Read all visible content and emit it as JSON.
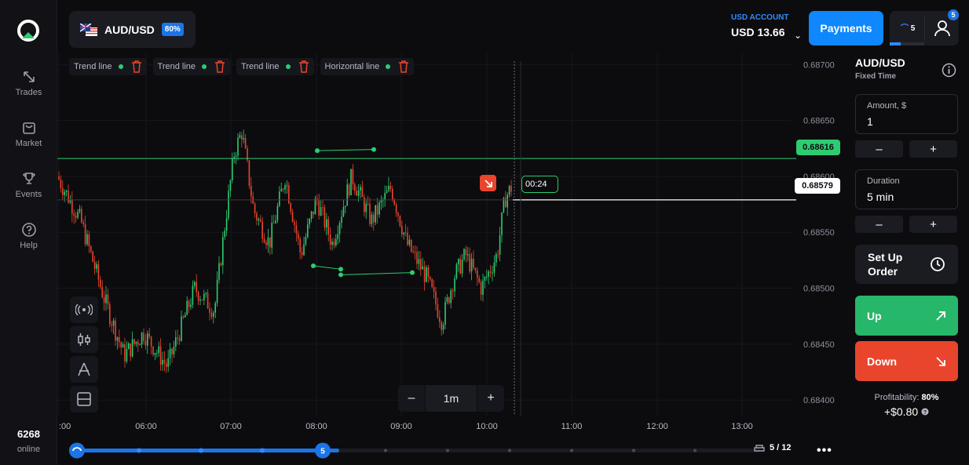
{
  "nav": {
    "items": [
      {
        "label": "Trades",
        "icon": "trades-icon"
      },
      {
        "label": "Market",
        "icon": "market-icon"
      },
      {
        "label": "Events",
        "icon": "trophy-icon"
      },
      {
        "label": "Help",
        "icon": "help-icon"
      }
    ],
    "online_count": "6268",
    "online_label": "online"
  },
  "header": {
    "asset": "AUD/USD",
    "asset_payout": "80%",
    "account_label": "USD ACCOUNT",
    "balance": "USD 13.66",
    "payments_label": "Payments",
    "level": "5",
    "notifications": "5"
  },
  "drawing_tools": [
    {
      "label": "Trend line"
    },
    {
      "label": "Trend line"
    },
    {
      "label": "Trend line"
    },
    {
      "label": "Horizontal line"
    }
  ],
  "chart_data": {
    "type": "candlestick",
    "price_axis": [
      "0.68700",
      "0.68650",
      "0.68600",
      "0.68550",
      "0.68500",
      "0.68450",
      "0.68400"
    ],
    "time_axis": [
      ":00",
      "06:00",
      "07:00",
      "08:00",
      "09:00",
      "10:00",
      "11:00",
      "12:00",
      "13:00"
    ],
    "horizontal_line_price": "0.68616",
    "current_price": "0.68579",
    "timer": "00:24",
    "timeframe": "1m",
    "ylim": [
      0.6837,
      0.6871
    ]
  },
  "colors": {
    "up": "#2ecc71",
    "down": "#e8452c",
    "accent": "#0f87ff"
  },
  "timeline": {
    "current": "5",
    "pages": "5 / 12"
  },
  "panel": {
    "asset": "AUD/USD",
    "asset_type": "Fixed Time",
    "amount_label": "Amount, $",
    "amount_value": "1",
    "duration_label": "Duration",
    "duration_value": "5 min",
    "minus": "–",
    "plus": "+",
    "setup_label": "Set Up Order",
    "up_label": "Up",
    "down_label": "Down",
    "profitability_label": "Profitability:",
    "profitability_value": "80%",
    "profit_amount": "+$0.80"
  }
}
